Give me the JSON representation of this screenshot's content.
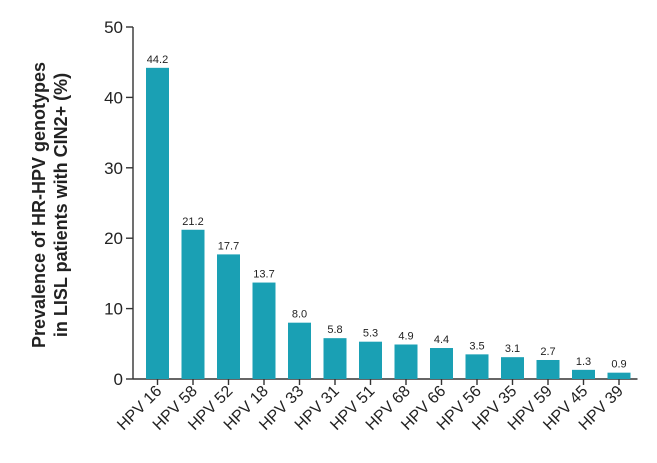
{
  "chart_data": {
    "type": "bar",
    "categories": [
      "HPV 16",
      "HPV 58",
      "HPV 52",
      "HPV 18",
      "HPV 33",
      "HPV 31",
      "HPV 51",
      "HPV 68",
      "HPV 66",
      "HPV 56",
      "HPV 35",
      "HPV 59",
      "HPV 45",
      "HPV 39"
    ],
    "values": [
      44.2,
      21.2,
      17.7,
      13.7,
      8.0,
      5.8,
      5.3,
      4.9,
      4.4,
      3.5,
      3.1,
      2.7,
      1.3,
      0.9
    ],
    "data_labels": [
      "44.2",
      "21.2",
      "17.7",
      "13.7",
      "8.0",
      "5.8",
      "5.3",
      "4.9",
      "4.4",
      "3.5",
      "3.1",
      "2.7",
      "1.3",
      "0.9"
    ],
    "ylabel_lines": [
      "Prevalence of HR-HPV genotypes",
      "in LISL patients with CIN2+ (%)"
    ],
    "yticks": [
      0,
      10,
      20,
      30,
      40,
      50
    ],
    "ylim": [
      0,
      50
    ],
    "bar_color": "#1aa0b4",
    "grid": false,
    "legend": false
  }
}
